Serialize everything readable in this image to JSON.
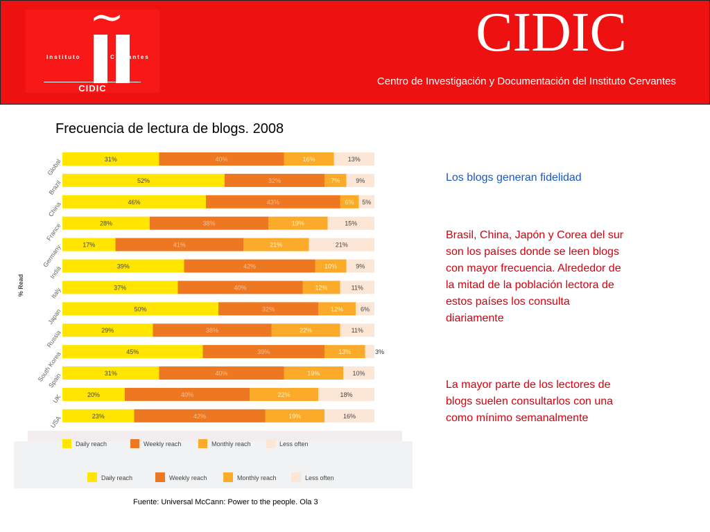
{
  "header": {
    "logo": {
      "top_left": "Instituto",
      "top_right": "Cervantes",
      "bottom": "CIDIC"
    },
    "brand": "CIDIC",
    "subtitle": "Centro de Investigación y Documentación del Instituto Cervantes"
  },
  "side": {
    "heading": "Los blogs generan fidelidad",
    "p1": "Brasil, China, Japón y Corea del sur son los países donde se leen blogs con mayor frecuencia. Alrededor de la mitad de la población lectora de estos países los consulta diariamente",
    "p2": "La mayor parte de los lectores de blogs suelen consultarlos con una como mínimo semanalmente"
  },
  "source": "Fuente: Universal McCann: Power to the people. Ola 3",
  "colors": {
    "daily": "#ffe500",
    "weekly": "#ee7722",
    "monthly": "#fcaa2a",
    "less": "#fce6d6"
  },
  "chart_data": {
    "type": "bar",
    "stacked": true,
    "orientation": "horizontal",
    "title": "Frecuencia de lectura de blogs. 2008",
    "ylabel": "% Read",
    "categories": [
      "Global",
      "Brazil",
      "China",
      "France",
      "Germany",
      "India",
      "Italy",
      "Japan",
      "Russia",
      "South Korea",
      "Spain",
      "UK",
      "USA"
    ],
    "series": [
      {
        "name": "Daily reach",
        "values": [
          31,
          52,
          46,
          28,
          17,
          39,
          37,
          50,
          29,
          45,
          31,
          20,
          23
        ]
      },
      {
        "name": "Weekly reach",
        "values": [
          40,
          32,
          43,
          38,
          41,
          42,
          40,
          32,
          38,
          39,
          40,
          40,
          42
        ]
      },
      {
        "name": "Monthly reach",
        "values": [
          16,
          7,
          6,
          19,
          21,
          10,
          12,
          12,
          22,
          13,
          19,
          22,
          19
        ]
      },
      {
        "name": "Less often",
        "values": [
          13,
          9,
          5,
          15,
          21,
          9,
          11,
          6,
          11,
          3,
          10,
          18,
          16
        ]
      }
    ],
    "legend_position": "bottom"
  }
}
